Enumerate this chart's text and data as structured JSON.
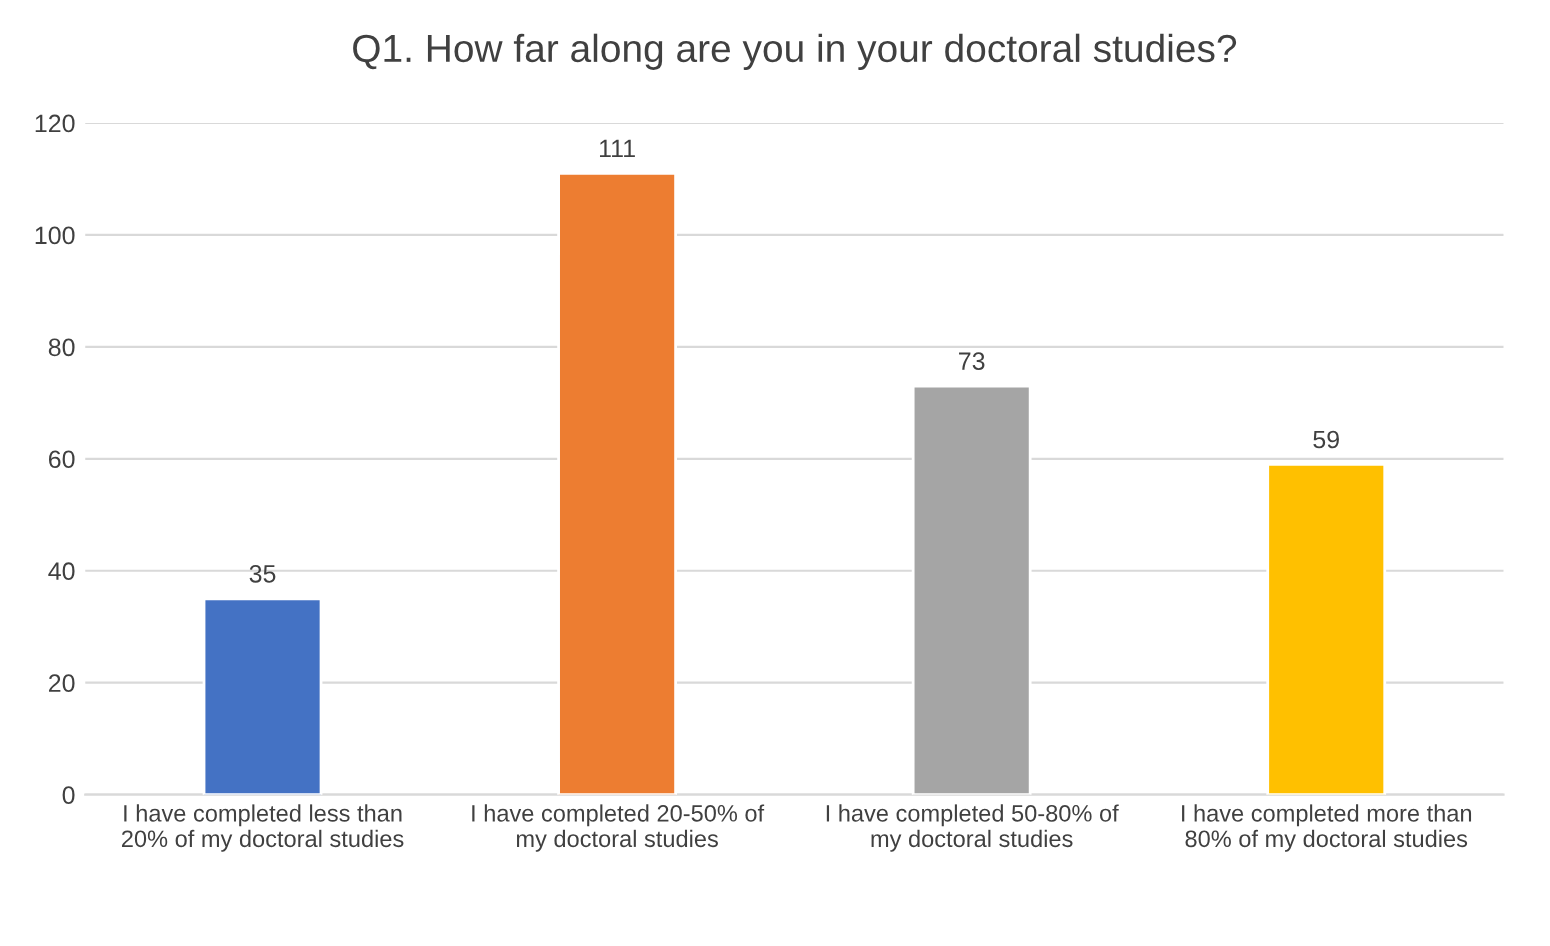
{
  "chart_data": {
    "type": "bar",
    "title": "Q1. How far along are you in your doctoral studies?",
    "categories": [
      "I have completed less than 20% of my doctoral studies",
      "I have completed 20-50% of my doctoral studies",
      "I have completed 50-80% of my doctoral studies",
      "I have completed more than 80% of my doctoral studies"
    ],
    "values": [
      35,
      111,
      73,
      59
    ],
    "colors": [
      "#4472c4",
      "#ed7d31",
      "#a5a5a5",
      "#ffc000"
    ],
    "ylim": [
      0,
      120
    ],
    "yticks": [
      0,
      20,
      40,
      60,
      80,
      100,
      120
    ],
    "grid": "y",
    "data_labels": true,
    "legend": false
  }
}
